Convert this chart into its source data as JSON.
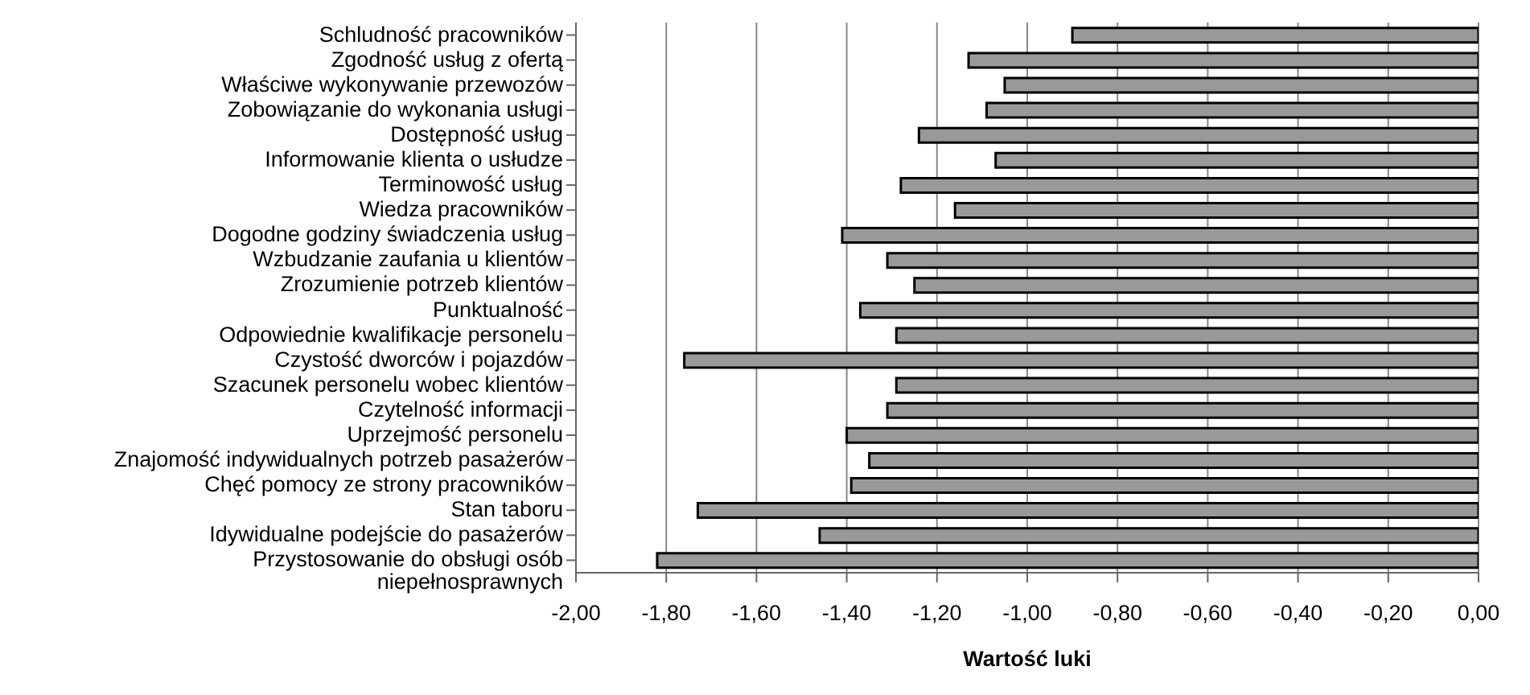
{
  "chart_data": {
    "type": "bar",
    "orientation": "horizontal",
    "xlabel": "Wartość luki",
    "categories": [
      "Schludność pracowników",
      "Zgodność usług z ofertą",
      "Właściwe wykonywanie przewozów",
      "Zobowiązanie do wykonania usługi",
      "Dostępność usług",
      "Informowanie klienta o usłudze",
      "Terminowość usług",
      "Wiedza pracowników",
      "Dogodne godziny świadczenia usług",
      "Wzbudzanie zaufania u klientów",
      "Zrozumienie potrzeb klientów",
      "Punktualność",
      "Odpowiednie kwalifikacje personelu",
      "Czystość dworców i pojazdów",
      "Szacunek personelu wobec klientów",
      "Czytelność informacji",
      "Uprzejmość personelu",
      "Znajomość indywidualnych potrzeb pasażerów",
      "Chęć pomocy ze strony pracowników",
      "Stan taboru",
      "Idywidualne podejście do pasażerów",
      "Przystosowanie do obsługi osób\nniepełnosprawnych"
    ],
    "values": [
      -0.9,
      -1.13,
      -1.05,
      -1.09,
      -1.24,
      -1.07,
      -1.28,
      -1.16,
      -1.41,
      -1.31,
      -1.25,
      -1.37,
      -1.29,
      -1.76,
      -1.29,
      -1.31,
      -1.4,
      -1.35,
      -1.39,
      -1.73,
      -1.46,
      -1.82
    ],
    "color": "#999999",
    "xlim": [
      -2,
      0
    ],
    "xticks": [
      {
        "value": -2,
        "label": "-2,00"
      },
      {
        "value": -1.8,
        "label": "-1,80"
      },
      {
        "value": -1.6,
        "label": "-1,60"
      },
      {
        "value": -1.4,
        "label": "-1,40"
      },
      {
        "value": -1.2,
        "label": "-1,20"
      },
      {
        "value": -1,
        "label": "-1,00"
      },
      {
        "value": -0.8,
        "label": "-0,80"
      },
      {
        "value": -0.6,
        "label": "-0,60"
      },
      {
        "value": -0.4,
        "label": "-0,40"
      },
      {
        "value": -0.2,
        "label": "-0,20"
      },
      {
        "value": 0,
        "label": "0,00"
      }
    ],
    "grid": "x",
    "legend": false
  }
}
